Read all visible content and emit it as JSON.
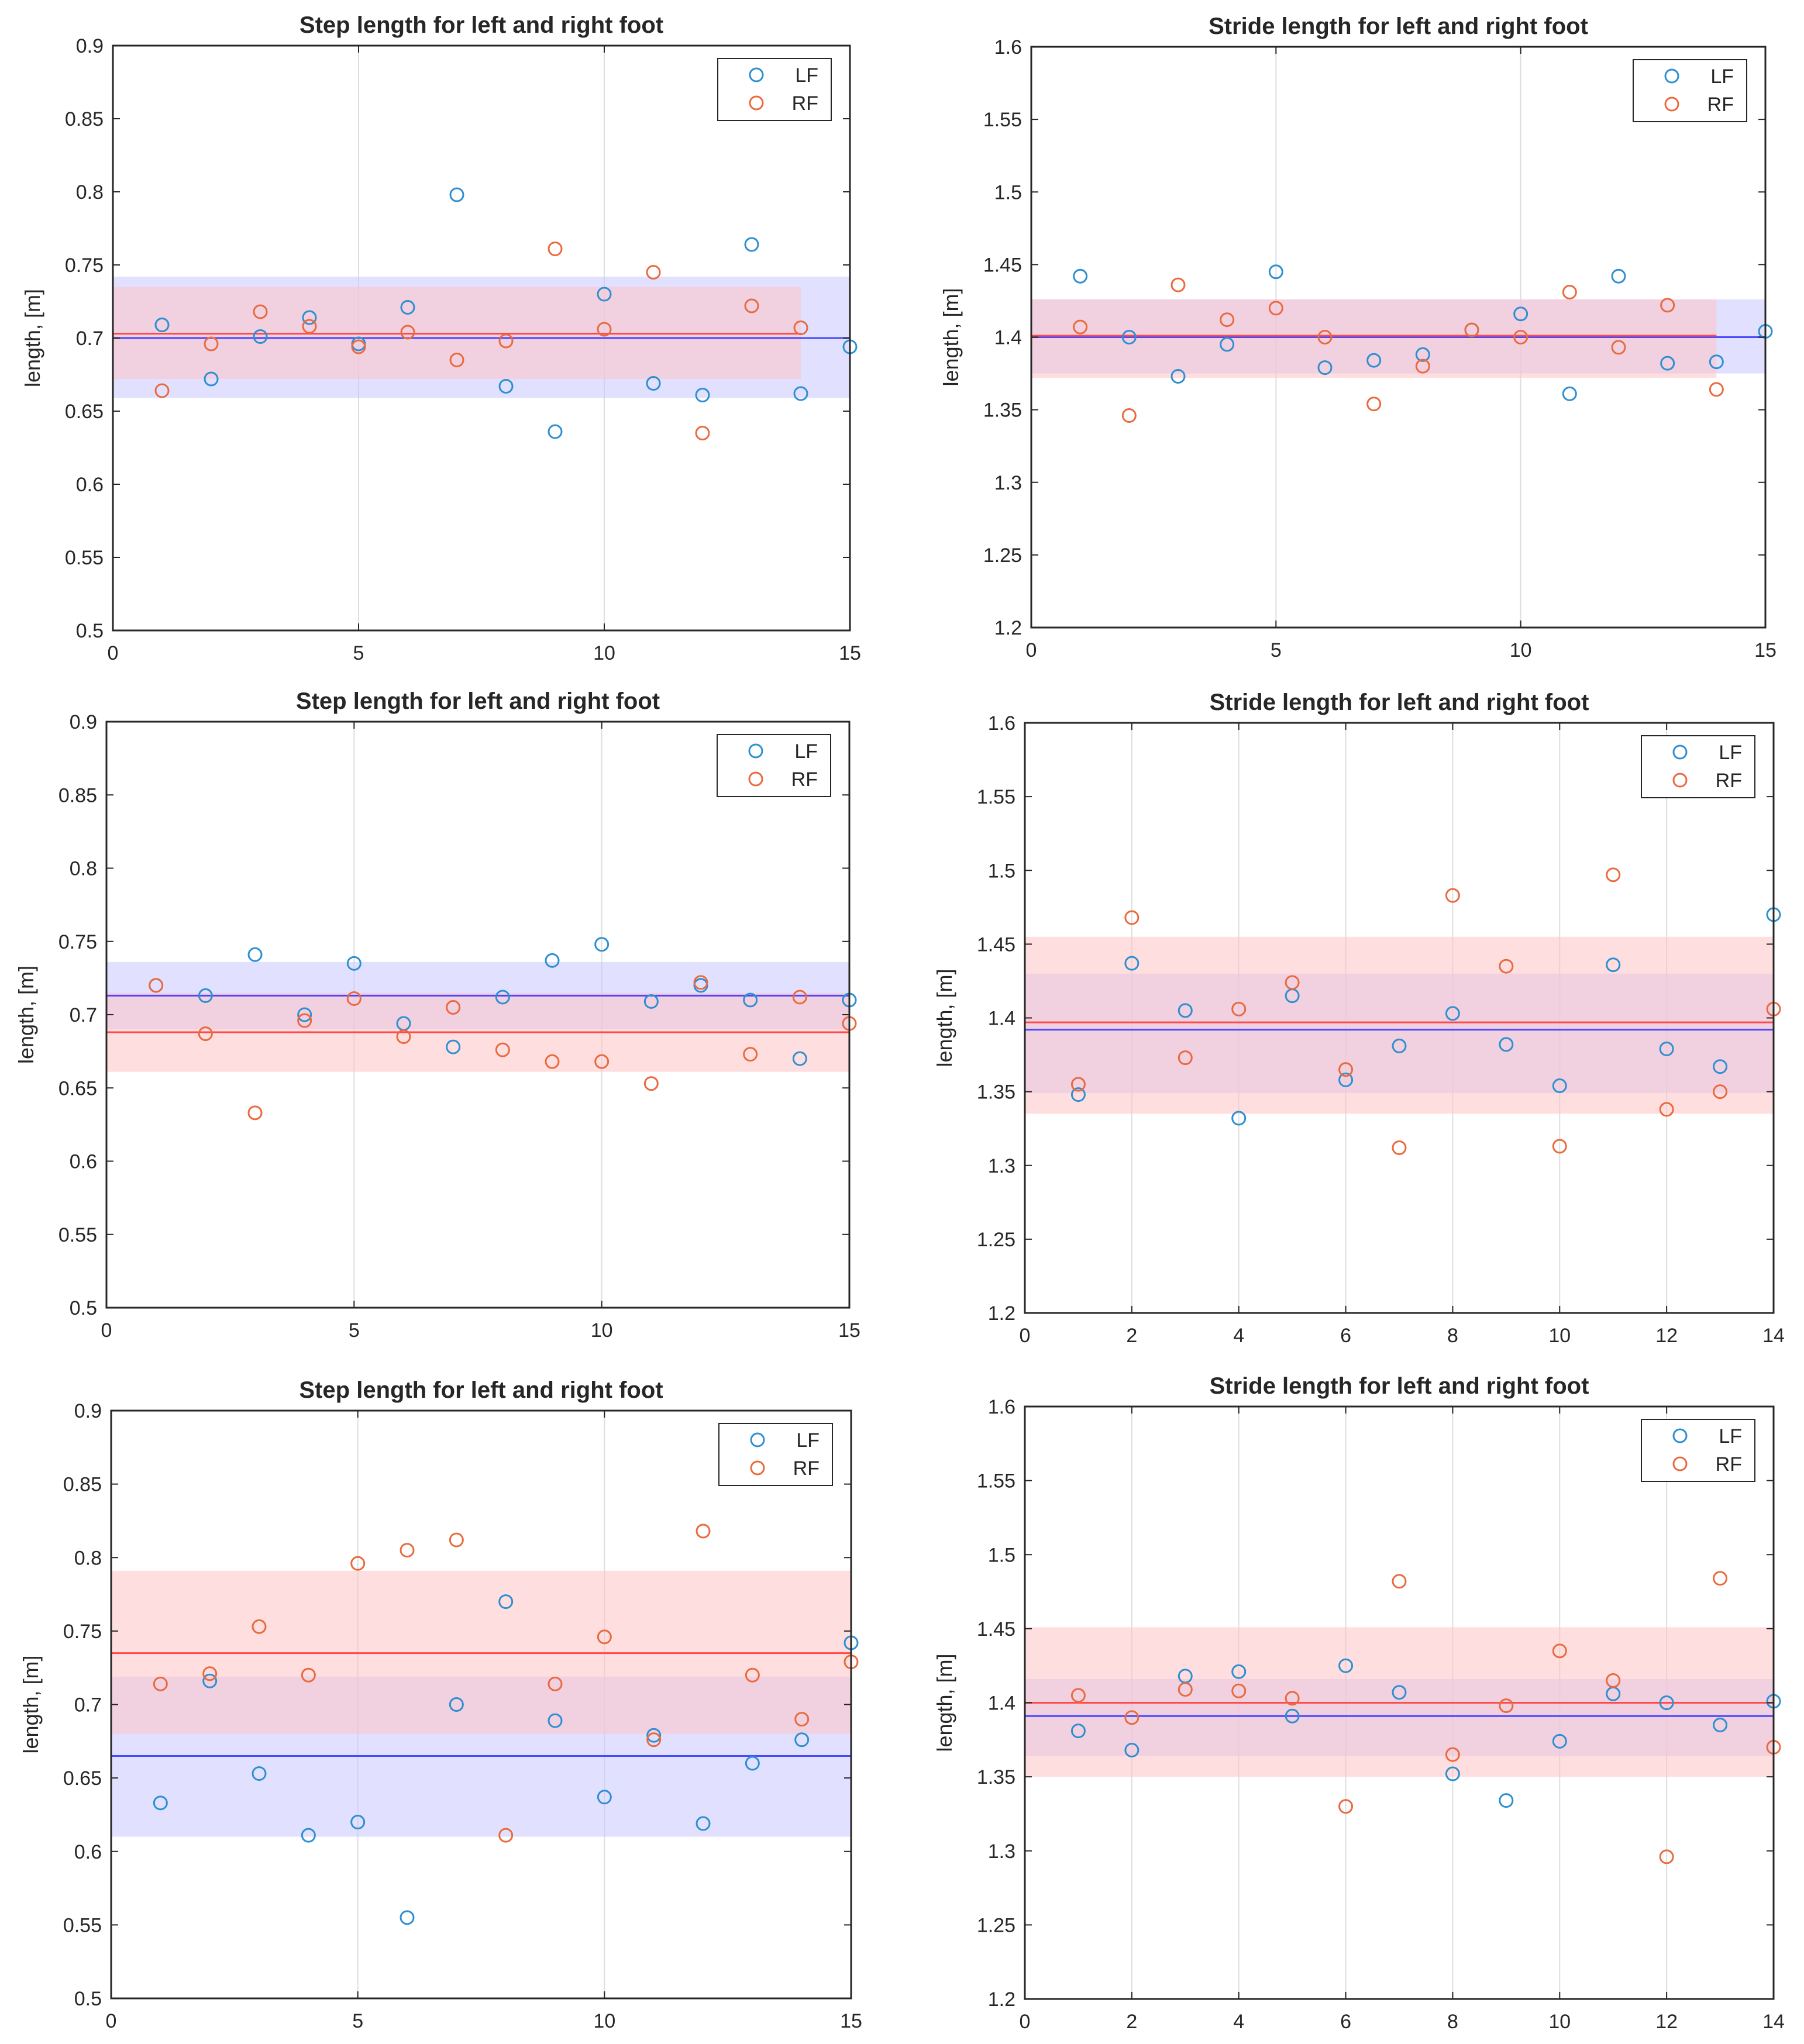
{
  "chart_data": [
    {
      "type": "scatter",
      "title": "Step length for left and right foot",
      "ylabel": "length, [m]",
      "xlabel": "",
      "xlim": [
        0,
        15
      ],
      "ylim": [
        0.5,
        0.9
      ],
      "xticks": [
        0,
        5,
        10,
        15
      ],
      "yticks": [
        0.5,
        0.55,
        0.6,
        0.65,
        0.7,
        0.75,
        0.8,
        0.85,
        0.9
      ],
      "grid": "vertical",
      "legend": "top-right",
      "series": [
        {
          "name": "LF",
          "color": "#2e8fd1",
          "x": [
            1,
            2,
            3,
            4,
            5,
            6,
            7,
            8,
            9,
            10,
            11,
            12,
            13,
            14,
            15
          ],
          "y": [
            0.709,
            0.672,
            0.701,
            0.714,
            0.696,
            0.721,
            0.798,
            0.667,
            0.636,
            0.73,
            0.669,
            0.661,
            0.764,
            0.662,
            0.694
          ],
          "mean": 0.7,
          "band": [
            0.659,
            0.742
          ]
        },
        {
          "name": "RF",
          "color": "#ea6a3e",
          "x": [
            1,
            2,
            3,
            4,
            5,
            6,
            7,
            8,
            9,
            10,
            11,
            12,
            13,
            14
          ],
          "y": [
            0.664,
            0.696,
            0.718,
            0.708,
            0.694,
            0.704,
            0.685,
            0.698,
            0.761,
            0.706,
            0.745,
            0.635,
            0.722,
            0.707
          ],
          "mean": 0.703,
          "band": [
            0.672,
            0.735
          ]
        }
      ]
    },
    {
      "type": "scatter",
      "title": "Stride length for left and right foot",
      "ylabel": "length, [m]",
      "xlabel": "",
      "xlim": [
        0,
        15
      ],
      "ylim": [
        1.2,
        1.6
      ],
      "xticks": [
        0,
        5,
        10,
        15
      ],
      "yticks": [
        1.2,
        1.25,
        1.3,
        1.35,
        1.4,
        1.45,
        1.5,
        1.55,
        1.6
      ],
      "grid": "vertical",
      "legend": "top-right",
      "series": [
        {
          "name": "LF",
          "color": "#2e8fd1",
          "x": [
            1,
            2,
            3,
            4,
            5,
            6,
            7,
            8,
            9,
            10,
            11,
            12,
            13,
            14,
            15
          ],
          "y": [
            1.442,
            1.4,
            1.373,
            1.395,
            1.445,
            1.379,
            1.384,
            1.388,
            1.405,
            1.416,
            1.361,
            1.442,
            1.382,
            1.383,
            1.404
          ],
          "mean": 1.4,
          "band": [
            1.375,
            1.426
          ]
        },
        {
          "name": "RF",
          "color": "#ea6a3e",
          "x": [
            1,
            2,
            3,
            4,
            5,
            6,
            7,
            8,
            9,
            10,
            11,
            12,
            13,
            14
          ],
          "y": [
            1.407,
            1.346,
            1.436,
            1.412,
            1.42,
            1.4,
            1.354,
            1.38,
            1.405,
            1.4,
            1.431,
            1.393,
            1.422,
            1.364
          ],
          "mean": 1.401,
          "band": [
            1.372,
            1.426
          ]
        }
      ]
    },
    {
      "type": "scatter",
      "title": "Step length for left and right foot",
      "ylabel": "length, [m]",
      "xlabel": "",
      "xlim": [
        0,
        15
      ],
      "ylim": [
        0.5,
        0.9
      ],
      "xticks": [
        0,
        5,
        10,
        15
      ],
      "yticks": [
        0.5,
        0.55,
        0.6,
        0.65,
        0.7,
        0.75,
        0.8,
        0.85,
        0.9
      ],
      "grid": "vertical",
      "legend": "top-right",
      "series": [
        {
          "name": "LF",
          "color": "#2e8fd1",
          "x": [
            1,
            2,
            3,
            4,
            5,
            6,
            7,
            8,
            9,
            10,
            11,
            12,
            13,
            14,
            15
          ],
          "y": [
            0.72,
            0.713,
            0.741,
            0.7,
            0.735,
            0.694,
            0.678,
            0.712,
            0.737,
            0.748,
            0.709,
            0.72,
            0.71,
            0.67,
            0.71
          ],
          "mean": 0.713,
          "band": [
            0.69,
            0.736
          ]
        },
        {
          "name": "RF",
          "color": "#ea6a3e",
          "x": [
            1,
            2,
            3,
            4,
            5,
            6,
            7,
            8,
            9,
            10,
            11,
            12,
            13,
            14,
            15
          ],
          "y": [
            0.72,
            0.687,
            0.633,
            0.696,
            0.711,
            0.685,
            0.705,
            0.676,
            0.668,
            0.668,
            0.653,
            0.722,
            0.673,
            0.712,
            0.694
          ],
          "mean": 0.688,
          "band": [
            0.661,
            0.715
          ]
        }
      ]
    },
    {
      "type": "scatter",
      "title": "Stride length for left and right foot",
      "ylabel": "length, [m]",
      "xlabel": "",
      "xlim": [
        0,
        14
      ],
      "ylim": [
        1.2,
        1.6
      ],
      "xticks": [
        0,
        2,
        4,
        6,
        8,
        10,
        12,
        14
      ],
      "yticks": [
        1.2,
        1.25,
        1.3,
        1.35,
        1.4,
        1.45,
        1.5,
        1.55,
        1.6
      ],
      "grid": "vertical",
      "legend": "top-right",
      "series": [
        {
          "name": "LF",
          "color": "#2e8fd1",
          "x": [
            1,
            2,
            3,
            4,
            5,
            6,
            7,
            8,
            9,
            10,
            11,
            12,
            13,
            14
          ],
          "y": [
            1.348,
            1.437,
            1.405,
            1.332,
            1.415,
            1.358,
            1.381,
            1.403,
            1.382,
            1.354,
            1.436,
            1.379,
            1.367,
            1.47
          ],
          "mean": 1.392,
          "band": [
            1.349,
            1.43
          ]
        },
        {
          "name": "RF",
          "color": "#ea6a3e",
          "x": [
            1,
            2,
            3,
            4,
            5,
            6,
            7,
            8,
            9,
            10,
            11,
            12,
            13,
            14
          ],
          "y": [
            1.355,
            1.468,
            1.373,
            1.406,
            1.424,
            1.365,
            1.312,
            1.483,
            1.435,
            1.313,
            1.497,
            1.338,
            1.35,
            1.406
          ],
          "mean": 1.397,
          "band": [
            1.335,
            1.455
          ]
        }
      ]
    },
    {
      "type": "scatter",
      "title": "Step length for left and right foot",
      "ylabel": "length, [m]",
      "xlabel": "",
      "xlim": [
        0,
        15
      ],
      "ylim": [
        0.5,
        0.9
      ],
      "xticks": [
        0,
        5,
        10,
        15
      ],
      "yticks": [
        0.5,
        0.55,
        0.6,
        0.65,
        0.7,
        0.75,
        0.8,
        0.85,
        0.9
      ],
      "grid": "vertical",
      "legend": "top-right",
      "series": [
        {
          "name": "LF",
          "color": "#2e8fd1",
          "x": [
            1,
            2,
            3,
            4,
            5,
            6,
            7,
            8,
            9,
            10,
            11,
            12,
            13,
            14,
            15
          ],
          "y": [
            0.633,
            0.716,
            0.653,
            0.611,
            0.62,
            0.555,
            0.7,
            0.77,
            0.689,
            0.637,
            0.679,
            0.619,
            0.66,
            0.676,
            0.742
          ],
          "mean": 0.665,
          "band": [
            0.61,
            0.719
          ]
        },
        {
          "name": "RF",
          "color": "#ea6a3e",
          "x": [
            1,
            2,
            3,
            4,
            5,
            6,
            7,
            8,
            9,
            10,
            11,
            12,
            13,
            14,
            15
          ],
          "y": [
            0.714,
            0.721,
            0.753,
            0.72,
            0.796,
            0.805,
            0.812,
            0.611,
            0.714,
            0.746,
            0.676,
            0.818,
            0.72,
            0.69,
            0.729
          ],
          "mean": 0.735,
          "band": [
            0.68,
            0.791
          ]
        }
      ]
    },
    {
      "type": "scatter",
      "title": "Stride length for left and right foot",
      "ylabel": "length, [m]",
      "xlabel": "",
      "xlim": [
        0,
        14
      ],
      "ylim": [
        1.2,
        1.6
      ],
      "xticks": [
        0,
        2,
        4,
        6,
        8,
        10,
        12,
        14
      ],
      "yticks": [
        1.2,
        1.25,
        1.3,
        1.35,
        1.4,
        1.45,
        1.5,
        1.55,
        1.6
      ],
      "grid": "vertical",
      "legend": "top-right",
      "series": [
        {
          "name": "LF",
          "color": "#2e8fd1",
          "x": [
            1,
            2,
            3,
            4,
            5,
            6,
            7,
            8,
            9,
            10,
            11,
            12,
            13,
            14
          ],
          "y": [
            1.381,
            1.368,
            1.418,
            1.421,
            1.391,
            1.425,
            1.407,
            1.352,
            1.334,
            1.374,
            1.406,
            1.4,
            1.385,
            1.401
          ],
          "mean": 1.391,
          "band": [
            1.364,
            1.416
          ]
        },
        {
          "name": "RF",
          "color": "#ea6a3e",
          "x": [
            1,
            2,
            3,
            4,
            5,
            6,
            7,
            8,
            9,
            10,
            11,
            12,
            13,
            14
          ],
          "y": [
            1.405,
            1.39,
            1.409,
            1.408,
            1.403,
            1.33,
            1.482,
            1.365,
            1.398,
            1.435,
            1.415,
            1.296,
            1.484,
            1.37
          ],
          "mean": 1.4,
          "band": [
            1.35,
            1.451
          ]
        }
      ]
    }
  ]
}
